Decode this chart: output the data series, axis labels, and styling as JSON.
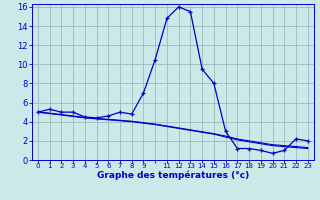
{
  "xlabel": "Graphe des températures (°c)",
  "background_color": "#cce8e8",
  "line_color": "#0000cc",
  "grid_color": "#99bbbb",
  "hours": [
    0,
    1,
    2,
    3,
    4,
    5,
    6,
    7,
    8,
    9,
    10,
    11,
    12,
    13,
    14,
    15,
    16,
    17,
    18,
    19,
    20,
    21,
    22,
    23
  ],
  "temp_main": [
    5.0,
    5.3,
    5.0,
    5.0,
    4.5,
    4.4,
    4.6,
    5.0,
    4.8,
    7.0,
    10.5,
    14.8,
    16.0,
    15.5,
    9.5,
    8.0,
    3.0,
    1.2,
    1.2,
    1.0,
    0.7,
    1.0,
    2.2,
    2.0
  ],
  "temp_line2": [
    5.0,
    4.85,
    4.7,
    4.55,
    4.4,
    4.3,
    4.2,
    4.1,
    4.0,
    3.85,
    3.7,
    3.5,
    3.3,
    3.1,
    2.9,
    2.7,
    2.4,
    2.1,
    1.9,
    1.7,
    1.5,
    1.4,
    1.3,
    1.2
  ],
  "temp_line3": [
    5.0,
    4.9,
    4.75,
    4.6,
    4.45,
    4.35,
    4.25,
    4.15,
    4.05,
    3.9,
    3.75,
    3.55,
    3.35,
    3.15,
    2.95,
    2.75,
    2.5,
    2.2,
    2.0,
    1.8,
    1.6,
    1.5,
    1.4,
    1.3
  ],
  "ylim": [
    0,
    16
  ],
  "xlim": [
    -0.5,
    23.5
  ],
  "yticks": [
    0,
    2,
    4,
    6,
    8,
    10,
    12,
    14,
    16
  ],
  "xtick_positions": [
    0,
    1,
    2,
    3,
    4,
    5,
    6,
    7,
    8,
    9,
    10,
    11,
    12,
    13,
    14,
    15,
    16,
    17,
    18,
    19,
    20,
    21,
    22,
    23
  ],
  "xtick_labels": [
    "0",
    "1",
    "2",
    "3",
    "4",
    "5",
    "6",
    "7",
    "8",
    "9",
    "",
    "11",
    "12",
    "13",
    "14",
    "15",
    "16",
    "17",
    "18",
    "19",
    "20",
    "21",
    "22",
    "23"
  ]
}
